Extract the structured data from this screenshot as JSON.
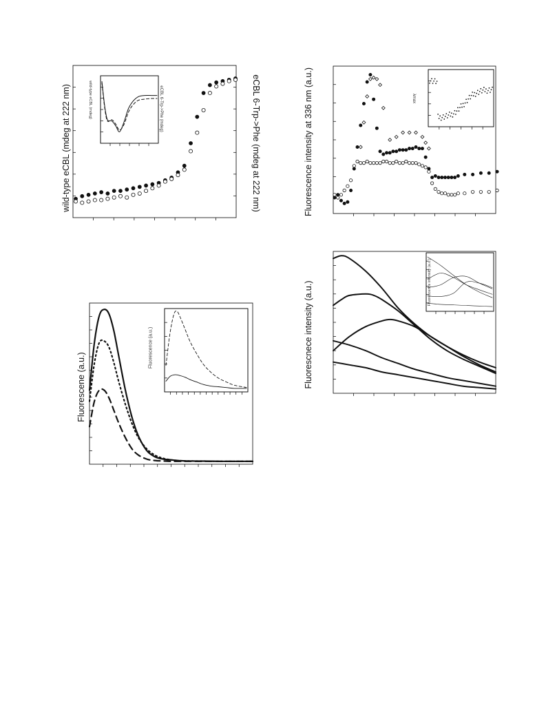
{
  "panels": {
    "tl": {
      "ylabel_left": "wild-type eCBL (mdeg at 222 nm)",
      "ylabel_right": "eCBL 6-Trp->Phe (mdeg at 222 nm)",
      "inset_ylabel_left": "wild-type eCBL (mdeg)",
      "inset_ylabel_right": "eCBL 6-Trp->Phe (mdeg)"
    },
    "tr": {
      "ylabel": "Fluorescence intensity at 336 nm (a.u.)",
      "inset_label": "λmax"
    },
    "bl": {
      "ylabel": "Fluorescene (a.u.)",
      "inset_ylabel": "Fluorescence (a.u.)"
    },
    "br": {
      "ylabel": "Fluorescnece intensity (a.u.)",
      "inset_ylabel": "Fluorescence intensity (a.u.)"
    }
  },
  "chart_data": [
    {
      "type": "scatter",
      "panel": "top-left",
      "xlabel": "",
      "ylabel": "wild-type eCBL (mdeg at 222 nm)",
      "y2label": "eCBL 6-Trp->Phe (mdeg at 222 nm)",
      "xlim": [
        0,
        1
      ],
      "ylim": [
        0,
        1
      ],
      "series": [
        {
          "marker": "filled-circle",
          "x": [
            0.0,
            0.04,
            0.08,
            0.12,
            0.16,
            0.2,
            0.24,
            0.28,
            0.32,
            0.36,
            0.4,
            0.44,
            0.48,
            0.52,
            0.56,
            0.6,
            0.64,
            0.68,
            0.72,
            0.76,
            0.8,
            0.84,
            0.88,
            0.92,
            0.96,
            1.0
          ],
          "y": [
            0.08,
            0.1,
            0.11,
            0.12,
            0.13,
            0.12,
            0.14,
            0.14,
            0.15,
            0.16,
            0.17,
            0.18,
            0.19,
            0.2,
            0.22,
            0.24,
            0.28,
            0.33,
            0.5,
            0.7,
            0.88,
            0.94,
            0.96,
            0.97,
            0.98,
            0.99
          ]
        },
        {
          "marker": "open-circle",
          "x": [
            0.0,
            0.04,
            0.08,
            0.12,
            0.16,
            0.2,
            0.24,
            0.28,
            0.32,
            0.36,
            0.4,
            0.44,
            0.48,
            0.52,
            0.56,
            0.6,
            0.64,
            0.68,
            0.72,
            0.76,
            0.8,
            0.84,
            0.88,
            0.92,
            0.96,
            1.0
          ],
          "y": [
            0.06,
            0.05,
            0.06,
            0.07,
            0.07,
            0.08,
            0.09,
            0.1,
            0.09,
            0.11,
            0.12,
            0.14,
            0.16,
            0.18,
            0.21,
            0.23,
            0.26,
            0.3,
            0.44,
            0.58,
            0.75,
            0.88,
            0.93,
            0.95,
            0.97,
            0.98
          ]
        }
      ],
      "inset": {
        "type": "line",
        "series": [
          {
            "style": "solid",
            "x": [
              0.0,
              0.05,
              0.1,
              0.18,
              0.25,
              0.32,
              0.4,
              0.48,
              0.56,
              0.66,
              0.78,
              0.9,
              1.0
            ],
            "y": [
              0.95,
              0.55,
              0.32,
              0.3,
              0.22,
              0.12,
              0.28,
              0.5,
              0.62,
              0.7,
              0.72,
              0.72,
              0.72
            ]
          },
          {
            "style": "dashed",
            "x": [
              0.0,
              0.05,
              0.1,
              0.18,
              0.25,
              0.32,
              0.4,
              0.48,
              0.56,
              0.66,
              0.78,
              0.9,
              1.0
            ],
            "y": [
              0.93,
              0.52,
              0.3,
              0.32,
              0.25,
              0.15,
              0.24,
              0.44,
              0.56,
              0.64,
              0.66,
              0.67,
              0.67
            ]
          }
        ]
      }
    },
    {
      "type": "scatter",
      "panel": "top-right",
      "xlabel": "",
      "ylabel": "Fluorescence intensity at 336 nm (a.u.)",
      "xlim": [
        0,
        1
      ],
      "ylim": [
        0,
        1
      ],
      "series": [
        {
          "marker": "filled-circle",
          "x": [
            0.0,
            0.02,
            0.04,
            0.06,
            0.08,
            0.1,
            0.12,
            0.14,
            0.16,
            0.18,
            0.2,
            0.22,
            0.24,
            0.26,
            0.28,
            0.3,
            0.32,
            0.34,
            0.36,
            0.38,
            0.4,
            0.42,
            0.44,
            0.46,
            0.48,
            0.5,
            0.52,
            0.54,
            0.56,
            0.58,
            0.6,
            0.62,
            0.64,
            0.66,
            0.68,
            0.7,
            0.72,
            0.74,
            0.76,
            0.8,
            0.85,
            0.9,
            0.95,
            1.0
          ],
          "y": [
            0.1,
            0.12,
            0.08,
            0.06,
            0.07,
            0.15,
            0.3,
            0.45,
            0.6,
            0.75,
            0.9,
            0.95,
            0.78,
            0.58,
            0.42,
            0.4,
            0.41,
            0.41,
            0.42,
            0.42,
            0.43,
            0.43,
            0.43,
            0.44,
            0.44,
            0.45,
            0.44,
            0.44,
            0.38,
            0.3,
            0.24,
            0.25,
            0.24,
            0.24,
            0.24,
            0.24,
            0.24,
            0.24,
            0.25,
            0.26,
            0.26,
            0.27,
            0.27,
            0.28
          ]
        },
        {
          "marker": "open-circle",
          "x": [
            0.0,
            0.02,
            0.04,
            0.06,
            0.08,
            0.1,
            0.12,
            0.14,
            0.16,
            0.18,
            0.2,
            0.22,
            0.24,
            0.26,
            0.28,
            0.3,
            0.32,
            0.34,
            0.36,
            0.38,
            0.4,
            0.42,
            0.44,
            0.46,
            0.48,
            0.5,
            0.52,
            0.54,
            0.56,
            0.58,
            0.6,
            0.62,
            0.64,
            0.66,
            0.68,
            0.7,
            0.72,
            0.74,
            0.76,
            0.8,
            0.85,
            0.9,
            0.95,
            1.0
          ],
          "y": [
            0.12,
            0.1,
            0.12,
            0.15,
            0.18,
            0.22,
            0.32,
            0.35,
            0.34,
            0.34,
            0.35,
            0.34,
            0.34,
            0.34,
            0.34,
            0.35,
            0.35,
            0.34,
            0.34,
            0.35,
            0.34,
            0.34,
            0.35,
            0.34,
            0.34,
            0.34,
            0.33,
            0.32,
            0.31,
            0.28,
            0.2,
            0.16,
            0.14,
            0.13,
            0.13,
            0.12,
            0.12,
            0.12,
            0.13,
            0.13,
            0.14,
            0.14,
            0.14,
            0.15
          ]
        },
        {
          "marker": "open-diamond",
          "x": [
            0.16,
            0.18,
            0.2,
            0.22,
            0.24,
            0.26,
            0.28,
            0.3,
            0.34,
            0.38,
            0.42,
            0.46,
            0.5,
            0.54,
            0.56,
            0.58
          ],
          "y": [
            0.45,
            0.62,
            0.8,
            0.92,
            0.93,
            0.92,
            0.88,
            0.72,
            0.5,
            0.52,
            0.55,
            0.55,
            0.55,
            0.52,
            0.48,
            0.44
          ]
        }
      ],
      "inset": {
        "type": "scatter",
        "label": "λmax"
      }
    },
    {
      "type": "line",
      "panel": "bottom-left",
      "xlabel": "",
      "ylabel": "Fluorescene (a.u.)",
      "xlim": [
        0,
        1
      ],
      "ylim": [
        0,
        1
      ],
      "series": [
        {
          "style": "solid",
          "x": [
            0.0,
            0.03,
            0.06,
            0.09,
            0.12,
            0.15,
            0.18,
            0.22,
            0.26,
            0.3,
            0.35,
            0.4,
            0.45,
            0.5,
            0.55,
            0.6,
            0.7,
            0.8,
            0.9,
            1.0
          ],
          "y": [
            0.45,
            0.75,
            0.92,
            0.96,
            0.93,
            0.82,
            0.66,
            0.45,
            0.28,
            0.16,
            0.07,
            0.03,
            0.015,
            0.01,
            0.005,
            0.003,
            0.002,
            0.001,
            0.001,
            0.001
          ]
        },
        {
          "style": "dotted",
          "x": [
            0.0,
            0.03,
            0.06,
            0.09,
            0.12,
            0.15,
            0.18,
            0.22,
            0.26,
            0.3,
            0.35,
            0.4,
            0.45,
            0.5,
            0.55,
            0.6,
            0.7,
            0.8,
            0.9,
            1.0
          ],
          "y": [
            0.38,
            0.62,
            0.75,
            0.76,
            0.72,
            0.62,
            0.5,
            0.36,
            0.24,
            0.15,
            0.08,
            0.04,
            0.02,
            0.01,
            0.005,
            0.003,
            0.002,
            0.001,
            0.001,
            0.001
          ]
        },
        {
          "style": "dashed",
          "x": [
            0.0,
            0.03,
            0.06,
            0.09,
            0.12,
            0.15,
            0.18,
            0.22,
            0.26,
            0.3,
            0.35,
            0.4,
            0.45,
            0.5,
            0.55,
            0.6,
            0.7,
            0.8,
            0.9,
            1.0
          ],
          "y": [
            0.22,
            0.38,
            0.45,
            0.45,
            0.4,
            0.32,
            0.24,
            0.15,
            0.08,
            0.04,
            0.015,
            0.006,
            0.003,
            0.001,
            0.001,
            0.001,
            0.001,
            0.001,
            0.001,
            0.001
          ]
        }
      ],
      "inset": {
        "type": "line",
        "ylabel": "Fluorescence (a.u.)",
        "series": [
          {
            "style": "dashed",
            "x": [
              0.0,
              0.05,
              0.1,
              0.14,
              0.18,
              0.24,
              0.3,
              0.38,
              0.46,
              0.55,
              0.65,
              0.75,
              0.85,
              1.0
            ],
            "y": [
              0.3,
              0.7,
              0.95,
              0.98,
              0.9,
              0.75,
              0.6,
              0.45,
              0.32,
              0.22,
              0.14,
              0.09,
              0.05,
              0.02
            ]
          },
          {
            "style": "solid",
            "x": [
              0.0,
              0.05,
              0.1,
              0.14,
              0.18,
              0.24,
              0.3,
              0.38,
              0.46,
              0.55,
              0.65,
              0.75,
              0.85,
              1.0
            ],
            "y": [
              0.1,
              0.16,
              0.18,
              0.18,
              0.17,
              0.15,
              0.12,
              0.09,
              0.06,
              0.04,
              0.03,
              0.02,
              0.01,
              0.01
            ]
          }
        ]
      }
    },
    {
      "type": "line",
      "panel": "bottom-right",
      "xlabel": "",
      "ylabel": "Fluorescnece intensity (a.u.)",
      "xlim": [
        0,
        1
      ],
      "ylim": [
        0,
        1
      ],
      "series": [
        {
          "x": [
            0.0,
            0.05,
            0.1,
            0.2,
            0.3,
            0.4,
            0.5,
            0.6,
            0.7,
            0.8,
            0.9,
            1.0
          ],
          "y": [
            0.95,
            0.97,
            0.95,
            0.86,
            0.74,
            0.6,
            0.49,
            0.4,
            0.33,
            0.27,
            0.22,
            0.18
          ]
        },
        {
          "x": [
            0.0,
            0.05,
            0.1,
            0.2,
            0.25,
            0.3,
            0.4,
            0.5,
            0.6,
            0.7,
            0.8,
            0.9,
            1.0
          ],
          "y": [
            0.62,
            0.66,
            0.69,
            0.7,
            0.69,
            0.66,
            0.58,
            0.48,
            0.38,
            0.3,
            0.24,
            0.19,
            0.14
          ]
        },
        {
          "x": [
            0.0,
            0.1,
            0.2,
            0.3,
            0.35,
            0.4,
            0.5,
            0.6,
            0.7,
            0.8,
            0.9,
            1.0
          ],
          "y": [
            0.3,
            0.4,
            0.47,
            0.51,
            0.52,
            0.51,
            0.47,
            0.4,
            0.33,
            0.26,
            0.2,
            0.15
          ]
        },
        {
          "x": [
            0.0,
            0.1,
            0.2,
            0.3,
            0.4,
            0.5,
            0.6,
            0.7,
            0.8,
            0.9,
            1.0
          ],
          "y": [
            0.37,
            0.34,
            0.3,
            0.25,
            0.21,
            0.17,
            0.14,
            0.11,
            0.09,
            0.07,
            0.05
          ]
        },
        {
          "x": [
            0.0,
            0.1,
            0.2,
            0.3,
            0.4,
            0.5,
            0.6,
            0.7,
            0.8,
            0.9,
            1.0
          ],
          "y": [
            0.22,
            0.2,
            0.18,
            0.15,
            0.13,
            0.11,
            0.09,
            0.07,
            0.05,
            0.04,
            0.03
          ]
        }
      ],
      "inset": {
        "type": "line",
        "ylabel": "Fluorescence intensity (a.u.)",
        "series": [
          {
            "x": [
              0,
              0.2,
              0.4,
              0.6,
              0.8,
              1.0
            ],
            "y": [
              0.95,
              0.8,
              0.62,
              0.45,
              0.32,
              0.22
            ]
          },
          {
            "x": [
              0,
              0.2,
              0.4,
              0.6,
              0.8,
              1.0
            ],
            "y": [
              0.55,
              0.66,
              0.58,
              0.45,
              0.36,
              0.28
            ]
          },
          {
            "x": [
              0,
              0.2,
              0.4,
              0.6,
              0.8,
              1.0
            ],
            "y": [
              0.4,
              0.45,
              0.58,
              0.6,
              0.48,
              0.38
            ]
          },
          {
            "x": [
              0,
              0.2,
              0.4,
              0.6,
              0.8,
              1.0
            ],
            "y": [
              0.25,
              0.24,
              0.3,
              0.5,
              0.48,
              0.4
            ]
          },
          {
            "x": [
              0,
              0.2,
              0.4,
              0.6,
              0.8,
              1.0
            ],
            "y": [
              0.12,
              0.1,
              0.09,
              0.08,
              0.07,
              0.06
            ]
          }
        ]
      }
    }
  ]
}
